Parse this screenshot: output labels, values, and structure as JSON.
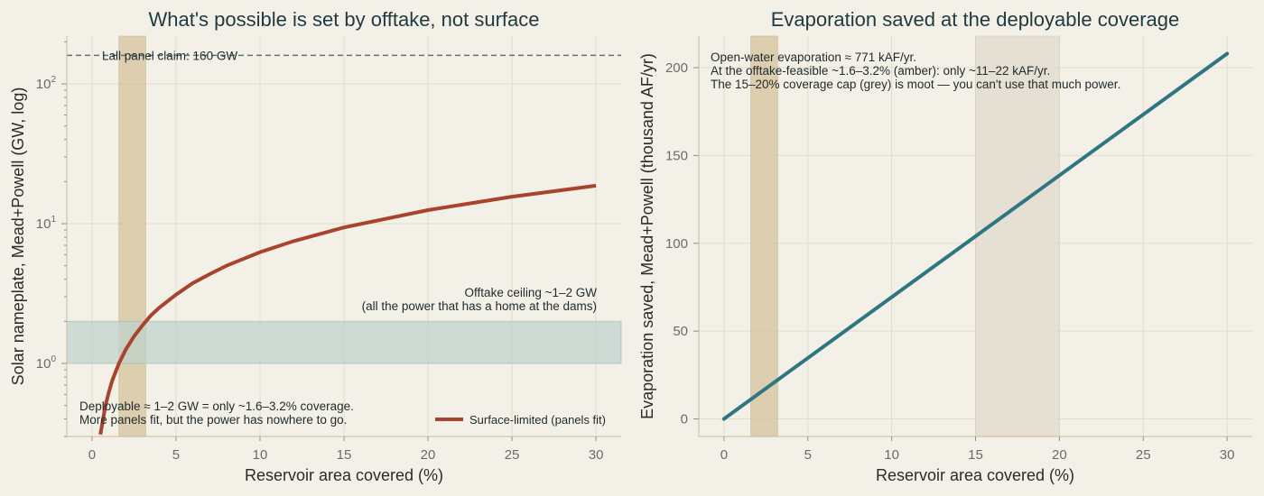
{
  "colors": {
    "background": "#f3f0e7",
    "grid": "#e4dcc8",
    "surface_curve": "#a8442e",
    "evap_line": "#2e7782",
    "amber_band": "#d6c6a0",
    "grey_band": "#e2ddcf",
    "offtake_band": "#bcd2cc",
    "claim_line": "#5f6f72"
  },
  "chart_data": [
    {
      "type": "line",
      "title": "What's possible is set by offtake, not surface",
      "xlabel": "Reservoir area covered (%)",
      "ylabel": "Solar nameplate, Mead+Powell (GW, log)",
      "xlim": [
        -1.5,
        31.5
      ],
      "ylim": [
        0.3,
        220
      ],
      "yscale": "log",
      "xticks": [
        0,
        5,
        10,
        15,
        20,
        25,
        30
      ],
      "yticks": [
        {
          "value": 1,
          "base": "10",
          "exp": "0"
        },
        {
          "value": 10,
          "base": "10",
          "exp": "1"
        },
        {
          "value": 100,
          "base": "10",
          "exp": "2"
        }
      ],
      "grid": true,
      "legend": "lower-right",
      "series": [
        {
          "name": "Surface-limited (panels fit)",
          "x": [
            0.5,
            0.8,
            1.0,
            1.2,
            1.6,
            2.0,
            2.5,
            3.0,
            3.5,
            4.0,
            5.0,
            6.0,
            7.0,
            8.0,
            10.0,
            12.0,
            15.0,
            20.0,
            25.0,
            30.0
          ],
          "y": [
            0.31,
            0.5,
            0.62,
            0.75,
            1.0,
            1.25,
            1.56,
            1.87,
            2.2,
            2.5,
            3.1,
            3.75,
            4.35,
            5.0,
            6.25,
            7.5,
            9.4,
            12.5,
            15.6,
            18.7
          ]
        }
      ],
      "bands": [
        {
          "axis": "x",
          "from": 1.6,
          "to": 3.2,
          "role": "amber"
        },
        {
          "axis": "y",
          "from": 1,
          "to": 2,
          "role": "offtake"
        }
      ],
      "hline": {
        "value": 160,
        "label": "Lall panel claim: 160 GW"
      },
      "annotations": {
        "offtake": [
          "Offtake ceiling ~1–2 GW",
          "(all the power that has a home at the dams)"
        ],
        "deployable": [
          "Deployable ≈ 1–2 GW = only ~1.6–3.2% coverage.",
          "More panels fit, but the power has nowhere to go."
        ]
      }
    },
    {
      "type": "line",
      "title": "Evaporation saved at the deployable coverage",
      "xlabel": "Reservoir area covered (%)",
      "ylabel": "Evaporation saved, Mead+Powell (thousand AF/yr)",
      "xlim": [
        -1.5,
        31.5
      ],
      "ylim": [
        -10,
        218
      ],
      "xticks": [
        0,
        5,
        10,
        15,
        20,
        25,
        30
      ],
      "yticks": [
        0,
        50,
        100,
        150,
        200
      ],
      "grid": true,
      "series": [
        {
          "name": "",
          "x": [
            0,
            30
          ],
          "y": [
            0,
            208
          ]
        }
      ],
      "bands": [
        {
          "axis": "x",
          "from": 1.6,
          "to": 3.2,
          "role": "amber"
        },
        {
          "axis": "x",
          "from": 15,
          "to": 20,
          "role": "grey"
        }
      ],
      "annotations": {
        "note": [
          "Open-water evaporation ≈ 771 kAF/yr.",
          "At the offtake-feasible ~1.6–3.2% (amber): only ~11–22 kAF/yr.",
          "The 15–20% coverage cap (grey) is moot — you can't use that much power."
        ]
      }
    }
  ]
}
